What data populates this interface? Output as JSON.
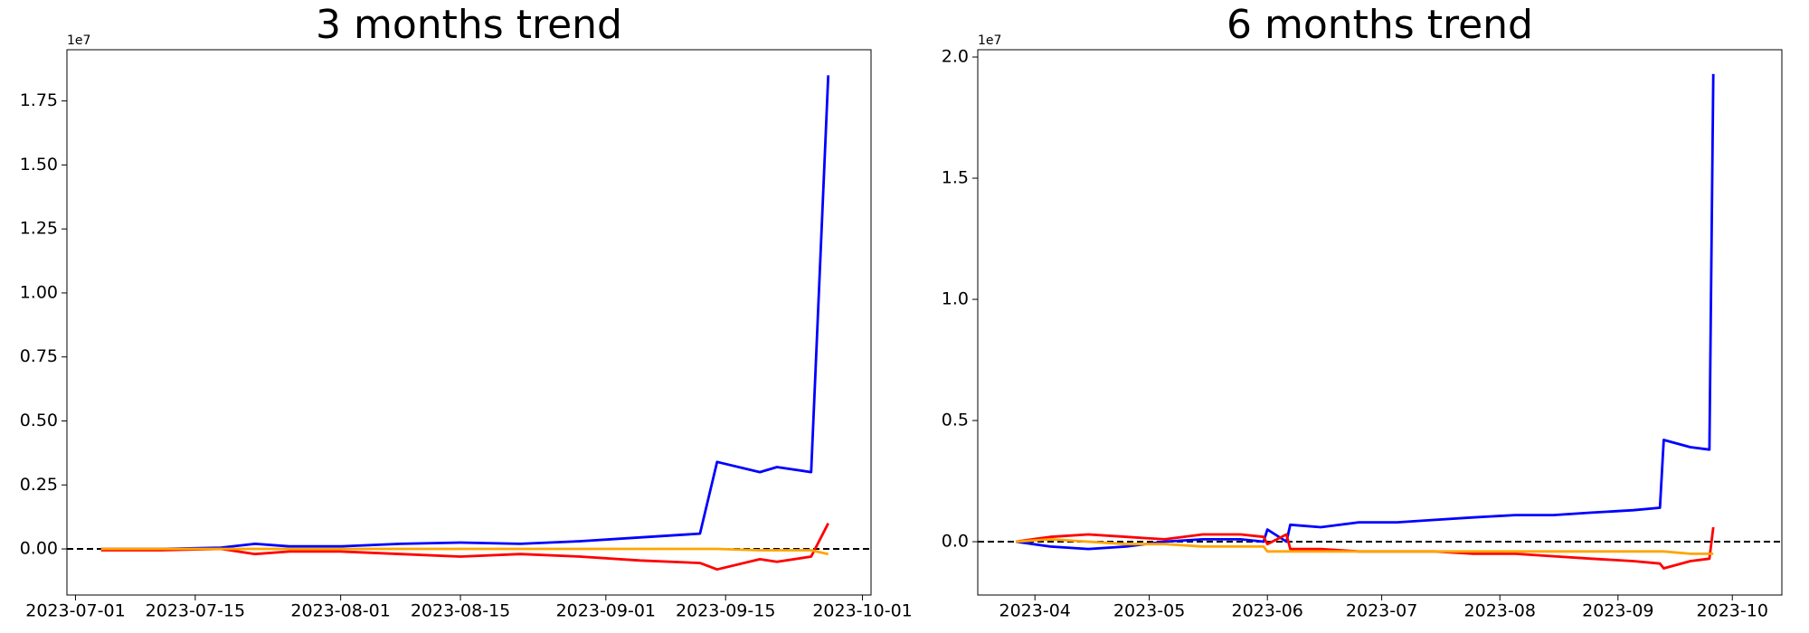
{
  "chart_data": [
    {
      "type": "line",
      "title": "3 months trend",
      "y_offset_label": "1e7",
      "x": [
        "2023-07-04",
        "2023-07-11",
        "2023-07-18",
        "2023-07-22",
        "2023-07-26",
        "2023-08-01",
        "2023-08-08",
        "2023-08-15",
        "2023-08-22",
        "2023-08-29",
        "2023-09-05",
        "2023-09-12",
        "2023-09-14",
        "2023-09-19",
        "2023-09-21",
        "2023-09-25",
        "2023-09-27"
      ],
      "series": [
        {
          "color": "#0000ff",
          "values": [
            0,
            0,
            0.005,
            0.02,
            0.01,
            0.01,
            0.02,
            0.025,
            0.02,
            0.03,
            0.045,
            0.06,
            0.34,
            0.3,
            0.32,
            0.3,
            1.85
          ]
        },
        {
          "color": "#ff0000",
          "values": [
            -0.005,
            -0.005,
            0,
            -0.02,
            -0.01,
            -0.01,
            -0.02,
            -0.03,
            -0.02,
            -0.03,
            -0.045,
            -0.055,
            -0.08,
            -0.04,
            -0.05,
            -0.03,
            0.1
          ]
        },
        {
          "color": "#ffa500",
          "values": [
            0,
            0,
            0,
            0,
            0,
            0,
            0,
            0,
            0,
            0,
            0,
            0,
            0,
            -0.005,
            -0.005,
            -0.005,
            -0.02
          ]
        }
      ],
      "reference_line": 0,
      "xlim": [
        "2023-06-30",
        "2023-10-02"
      ],
      "xticks": [
        "2023-07-01",
        "2023-07-15",
        "2023-08-01",
        "2023-08-15",
        "2023-09-01",
        "2023-09-15",
        "2023-10-01"
      ],
      "ylim": [
        -0.18,
        1.95
      ],
      "yticks": [
        {
          "value": 0,
          "label": "0.00"
        },
        0.25,
        {
          "value": 0.5,
          "label": "0.50"
        },
        0.75,
        {
          "value": 1,
          "label": "1.00"
        },
        1.25,
        {
          "value": 1.5,
          "label": "1.50"
        },
        1.75
      ]
    },
    {
      "type": "line",
      "title": "6 months trend",
      "y_offset_label": "1e7",
      "x": [
        "2023-03-27",
        "2023-04-05",
        "2023-04-15",
        "2023-04-25",
        "2023-05-05",
        "2023-05-15",
        "2023-05-25",
        "2023-05-31",
        "2023-06-01",
        "2023-06-06",
        "2023-06-07",
        "2023-06-15",
        "2023-06-25",
        "2023-07-05",
        "2023-07-15",
        "2023-07-25",
        "2023-08-05",
        "2023-08-15",
        "2023-08-25",
        "2023-09-05",
        "2023-09-12",
        "2023-09-13",
        "2023-09-20",
        "2023-09-25",
        "2023-09-26"
      ],
      "series": [
        {
          "color": "#0000ff",
          "values": [
            0,
            -0.02,
            -0.03,
            -0.02,
            0,
            0.01,
            0.01,
            0,
            0.05,
            0,
            0.07,
            0.06,
            0.08,
            0.08,
            0.09,
            0.1,
            0.11,
            0.11,
            0.12,
            0.13,
            0.14,
            0.42,
            0.39,
            0.38,
            1.93
          ]
        },
        {
          "color": "#ff0000",
          "values": [
            0,
            0.02,
            0.03,
            0.02,
            0.01,
            0.03,
            0.03,
            0.02,
            -0.01,
            0.03,
            -0.03,
            -0.03,
            -0.04,
            -0.04,
            -0.04,
            -0.05,
            -0.05,
            -0.06,
            -0.07,
            -0.08,
            -0.09,
            -0.11,
            -0.08,
            -0.07,
            0.06
          ]
        },
        {
          "color": "#ffa500",
          "values": [
            0,
            0.01,
            0,
            -0.01,
            -0.01,
            -0.02,
            -0.02,
            -0.02,
            -0.04,
            -0.04,
            -0.04,
            -0.04,
            -0.04,
            -0.04,
            -0.04,
            -0.04,
            -0.04,
            -0.04,
            -0.04,
            -0.04,
            -0.04,
            -0.04,
            -0.05,
            -0.05,
            -0.05
          ]
        }
      ],
      "reference_line": 0,
      "xlim": [
        "2023-03-17",
        "2023-10-14"
      ],
      "xticks": [
        "2023-04",
        "2023-05",
        "2023-06",
        "2023-07",
        "2023-08",
        "2023-09",
        "2023-10"
      ],
      "ylim": [
        -0.22,
        2.03
      ],
      "yticks": [
        {
          "value": 0,
          "label": "0.0"
        },
        0.5,
        {
          "value": 1,
          "label": "1.0"
        },
        1.5,
        {
          "value": 2,
          "label": "2.0"
        }
      ]
    }
  ]
}
